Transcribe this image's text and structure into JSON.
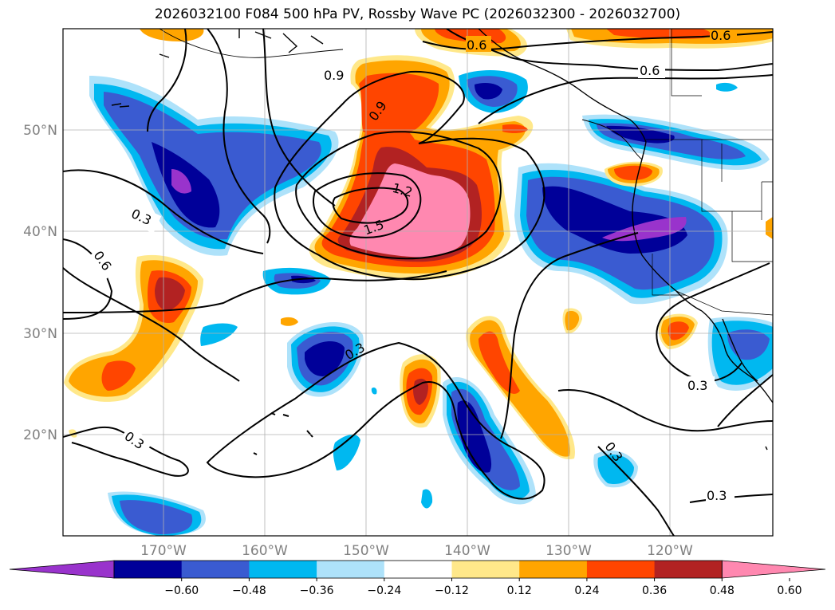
{
  "title": "2026032100 F084 500 hPa PV, Rossby Wave PC (2026032300 - 2026032700)",
  "lat_labels": [
    "50°N",
    "40°N",
    "30°N",
    "20°N"
  ],
  "lon_labels": [
    "170°W",
    "160°W",
    "150°W",
    "140°W",
    "130°W",
    "120°W"
  ],
  "colorbar": {
    "colors": [
      "#9933cc",
      "#000099",
      "#3a5bd1",
      "#00b8f0",
      "#aee2fa",
      "#ffffff",
      "#ffe88a",
      "#ffa500",
      "#ff4500",
      "#b22222",
      "#ff88b0"
    ],
    "ticks": [
      "−0.60",
      "−0.48",
      "−0.36",
      "−0.24",
      "−0.12",
      "0.12",
      "0.24",
      "0.36",
      "0.48",
      "0.60"
    ]
  },
  "contour_labels": [
    "0.6",
    "0.6",
    "0.6",
    "0.9",
    "0.9",
    "1.2",
    "1.5",
    "0.3",
    "0.6",
    "0.3",
    "0.3",
    "0.3",
    "0.3",
    "0.3"
  ],
  "chart_data": {
    "type": "filled-contour map",
    "title": "2026032100 F084 500 hPa PV, Rossby Wave PC (2026032300 - 2026032700)",
    "projection": "cylindrical lat/lon",
    "lon_range": [
      -180,
      -110
    ],
    "lat_range": [
      10,
      60
    ],
    "fill_field": "Rossby wave PC anomaly (shaded)",
    "line_field": "500 hPa PV (black contours)",
    "contour_levels": [
      0.3,
      0.6,
      0.9,
      1.2,
      1.5
    ],
    "colorbar_levels": [
      -0.6,
      -0.48,
      -0.36,
      -0.24,
      -0.12,
      0.12,
      0.24,
      0.36,
      0.48,
      0.6
    ]
  }
}
